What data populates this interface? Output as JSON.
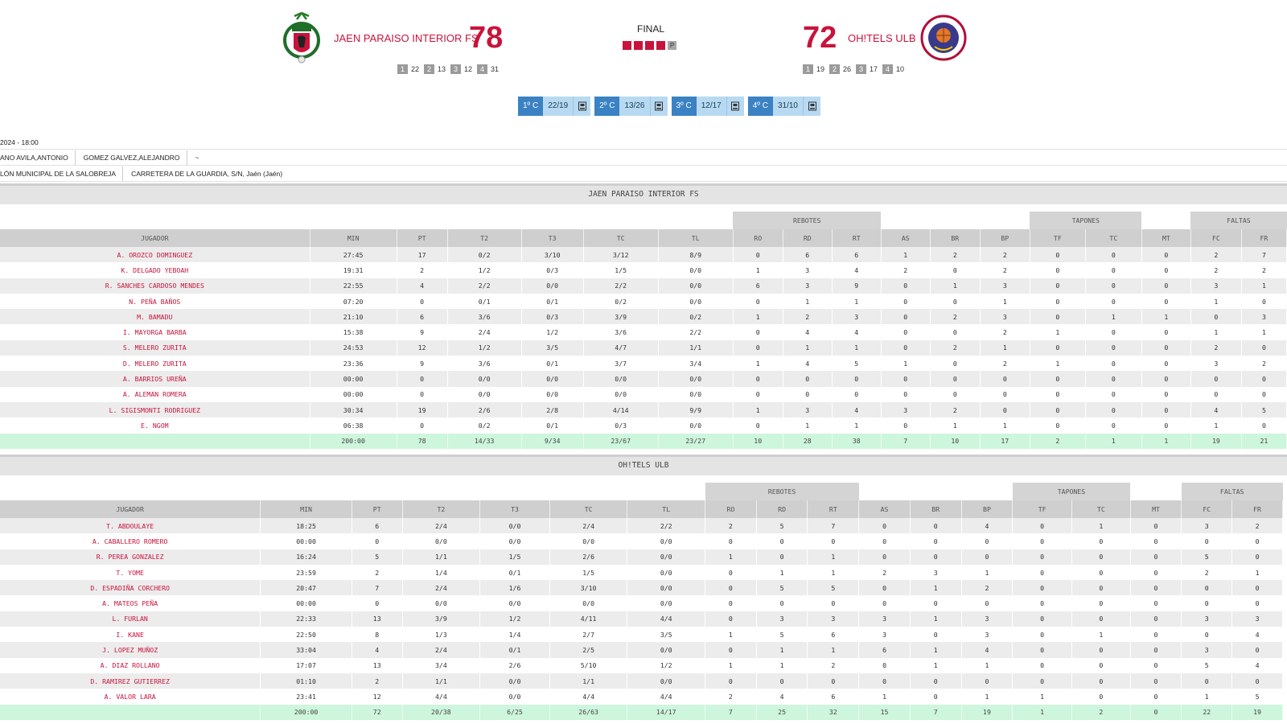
{
  "header": {
    "home": {
      "name": "JAEN PARAISO INTERIOR FS",
      "score": "78",
      "quarters": [
        [
          "1",
          "22"
        ],
        [
          "2",
          "13"
        ],
        [
          "3",
          "12"
        ],
        [
          "4",
          "31"
        ]
      ]
    },
    "away": {
      "name": "OH!TELS ULB",
      "score": "72",
      "quarters": [
        [
          "1",
          "19"
        ],
        [
          "2",
          "26"
        ],
        [
          "3",
          "17"
        ],
        [
          "4",
          "10"
        ]
      ]
    },
    "status": "FINAL",
    "period_marker": "P",
    "colors": {
      "accent": "#c8143c",
      "tab_blue": "#3b82c4",
      "tab_light": "#b7daf2",
      "totals_green": "#cdf6dc"
    }
  },
  "quarter_tabs": [
    {
      "label": "1º C",
      "score": "22/19",
      "icon": "stats-sheet-icon"
    },
    {
      "label": "2º C",
      "score": "13/26",
      "icon": "stats-sheet-icon"
    },
    {
      "label": "3º C",
      "score": "12/17",
      "icon": "stats-sheet-icon"
    },
    {
      "label": "4º C",
      "score": "31/10",
      "icon": "stats-sheet-icon"
    }
  ],
  "info": {
    "date": "2024 - 18:00",
    "referees": [
      "ANO AVILA,ANTONIO",
      "GOMEZ GALVEZ,ALEJANDRO",
      "~"
    ],
    "venue": [
      "LÓN MUNICIPAL DE LA SALOBREJA",
      "CARRETERA DE LA GUARDIA, S/N, Jaén (Jaén)"
    ]
  },
  "groups": {
    "rebotes": "REBOTES",
    "tapones": "TAPONES",
    "faltas": "FALTAS"
  },
  "columns": [
    "JUGADOR",
    "MIN",
    "PT",
    "T2",
    "T3",
    "TC",
    "TL",
    "RO",
    "RD",
    "RT",
    "AS",
    "BR",
    "BP",
    "TF",
    "TC",
    "MT",
    "FC",
    "FR"
  ],
  "teams": [
    {
      "name": "JAEN PARAISO INTERIOR FS",
      "players": [
        [
          "A. OROZCO DOMINGUEZ",
          "27:45",
          "17",
          "0/2",
          "3/10",
          "3/12",
          "8/9",
          "0",
          "6",
          "6",
          "1",
          "2",
          "2",
          "0",
          "0",
          "0",
          "2",
          "7"
        ],
        [
          "K. DELGADO YEBOAH",
          "19:31",
          "2",
          "1/2",
          "0/3",
          "1/5",
          "0/0",
          "1",
          "3",
          "4",
          "2",
          "0",
          "2",
          "0",
          "0",
          "0",
          "2",
          "2"
        ],
        [
          "R. SANCHES CARDOSO MENDES",
          "22:55",
          "4",
          "2/2",
          "0/0",
          "2/2",
          "0/0",
          "6",
          "3",
          "9",
          "0",
          "1",
          "3",
          "0",
          "0",
          "0",
          "3",
          "1"
        ],
        [
          "N. PEÑA BAÑOS",
          "07:20",
          "0",
          "0/1",
          "0/1",
          "0/2",
          "0/0",
          "0",
          "1",
          "1",
          "0",
          "0",
          "1",
          "0",
          "0",
          "0",
          "1",
          "0"
        ],
        [
          "M. BAMADU",
          "21:10",
          "6",
          "3/6",
          "0/3",
          "3/9",
          "0/2",
          "1",
          "2",
          "3",
          "0",
          "2",
          "3",
          "0",
          "1",
          "1",
          "0",
          "3"
        ],
        [
          "I. MAYORGA BARBA",
          "15:38",
          "9",
          "2/4",
          "1/2",
          "3/6",
          "2/2",
          "0",
          "4",
          "4",
          "0",
          "0",
          "2",
          "1",
          "0",
          "0",
          "1",
          "1"
        ],
        [
          "S. MELERO ZURITA",
          "24:53",
          "12",
          "1/2",
          "3/5",
          "4/7",
          "1/1",
          "0",
          "1",
          "1",
          "0",
          "2",
          "1",
          "0",
          "0",
          "0",
          "2",
          "0"
        ],
        [
          "D. MELERO ZURITA",
          "23:36",
          "9",
          "3/6",
          "0/1",
          "3/7",
          "3/4",
          "1",
          "4",
          "5",
          "1",
          "0",
          "2",
          "1",
          "0",
          "0",
          "3",
          "2"
        ],
        [
          "A. BARRIOS UREÑA",
          "00:00",
          "0",
          "0/0",
          "0/0",
          "0/0",
          "0/0",
          "0",
          "0",
          "0",
          "0",
          "0",
          "0",
          "0",
          "0",
          "0",
          "0",
          "0"
        ],
        [
          "A. ALEMAN ROMERA",
          "00:00",
          "0",
          "0/0",
          "0/0",
          "0/0",
          "0/0",
          "0",
          "0",
          "0",
          "0",
          "0",
          "0",
          "0",
          "0",
          "0",
          "0",
          "0"
        ],
        [
          "L. SIGISMONTI RODRIGUEZ",
          "30:34",
          "19",
          "2/6",
          "2/8",
          "4/14",
          "9/9",
          "1",
          "3",
          "4",
          "3",
          "2",
          "0",
          "0",
          "0",
          "0",
          "4",
          "5"
        ],
        [
          "E. NGOM",
          "06:38",
          "0",
          "0/2",
          "0/1",
          "0/3",
          "0/0",
          "0",
          "1",
          "1",
          "0",
          "1",
          "1",
          "0",
          "0",
          "0",
          "1",
          "0"
        ]
      ],
      "totals": [
        "",
        "200:00",
        "78",
        "14/33",
        "9/34",
        "23/67",
        "23/27",
        "10",
        "28",
        "38",
        "7",
        "10",
        "17",
        "2",
        "1",
        "1",
        "19",
        "21"
      ]
    },
    {
      "name": "OH!TELS ULB",
      "players": [
        [
          "T. ABDOULAYE",
          "18:25",
          "6",
          "2/4",
          "0/0",
          "2/4",
          "2/2",
          "2",
          "5",
          "7",
          "0",
          "0",
          "4",
          "0",
          "1",
          "0",
          "3",
          "2"
        ],
        [
          "A. CABALLERO ROMERO",
          "00:00",
          "0",
          "0/0",
          "0/0",
          "0/0",
          "0/0",
          "0",
          "0",
          "0",
          "0",
          "0",
          "0",
          "0",
          "0",
          "0",
          "0",
          "0"
        ],
        [
          "R. PEREA GONZALEZ",
          "16:24",
          "5",
          "1/1",
          "1/5",
          "2/6",
          "0/0",
          "1",
          "0",
          "1",
          "0",
          "0",
          "0",
          "0",
          "0",
          "0",
          "5",
          "0"
        ],
        [
          "T. YOME",
          "23:59",
          "2",
          "1/4",
          "0/1",
          "1/5",
          "0/0",
          "0",
          "1",
          "1",
          "2",
          "3",
          "1",
          "0",
          "0",
          "0",
          "2",
          "1"
        ],
        [
          "D. ESPADIÑA CORCHERO",
          "20:47",
          "7",
          "2/4",
          "1/6",
          "3/10",
          "0/0",
          "0",
          "5",
          "5",
          "0",
          "1",
          "2",
          "0",
          "0",
          "0",
          "0",
          "0"
        ],
        [
          "A. MATEOS PEÑA",
          "00:00",
          "0",
          "0/0",
          "0/0",
          "0/0",
          "0/0",
          "0",
          "0",
          "0",
          "0",
          "0",
          "0",
          "0",
          "0",
          "0",
          "0",
          "0"
        ],
        [
          "L. FURLAN",
          "22:33",
          "13",
          "3/9",
          "1/2",
          "4/11",
          "4/4",
          "0",
          "3",
          "3",
          "3",
          "1",
          "3",
          "0",
          "0",
          "0",
          "3",
          "3"
        ],
        [
          "I. KANE",
          "22:50",
          "8",
          "1/3",
          "1/4",
          "2/7",
          "3/5",
          "1",
          "5",
          "6",
          "3",
          "0",
          "3",
          "0",
          "1",
          "0",
          "0",
          "4"
        ],
        [
          "J. LOPEZ MUÑOZ",
          "33:04",
          "4",
          "2/4",
          "0/1",
          "2/5",
          "0/0",
          "0",
          "1",
          "1",
          "6",
          "1",
          "4",
          "0",
          "0",
          "0",
          "3",
          "0"
        ],
        [
          "A. DIAZ ROLLANO",
          "17:07",
          "13",
          "3/4",
          "2/6",
          "5/10",
          "1/2",
          "1",
          "1",
          "2",
          "0",
          "1",
          "1",
          "0",
          "0",
          "0",
          "5",
          "4"
        ],
        [
          "D. RAMIREZ GUTIERREZ",
          "01:10",
          "2",
          "1/1",
          "0/0",
          "1/1",
          "0/0",
          "0",
          "0",
          "0",
          "0",
          "0",
          "0",
          "0",
          "0",
          "0",
          "0",
          "0"
        ],
        [
          "A. VALOR LARA",
          "23:41",
          "12",
          "4/4",
          "0/0",
          "4/4",
          "4/4",
          "2",
          "4",
          "6",
          "1",
          "0",
          "1",
          "1",
          "0",
          "0",
          "1",
          "5"
        ]
      ],
      "totals": [
        "",
        "200:00",
        "72",
        "20/38",
        "6/25",
        "26/63",
        "14/17",
        "7",
        "25",
        "32",
        "15",
        "7",
        "19",
        "1",
        "2",
        "0",
        "22",
        "19"
      ]
    }
  ]
}
